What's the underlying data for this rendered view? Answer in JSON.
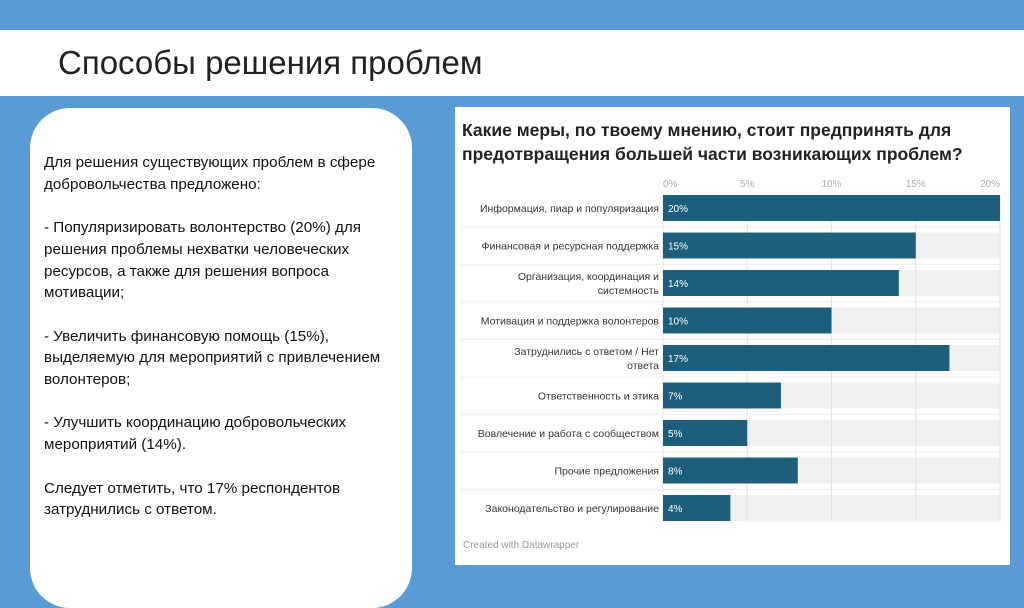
{
  "slide": {
    "title": "Способы решения проблем",
    "body": "Для решения существующих проблем в сфере добровольчества предложено:\n\n- Популяризировать волонтерство (20%) для решения проблемы нехватки человеческих ресурсов, а также для решения вопроса мотивации;\n\n- Увеличить финансовую помощь (15%), выделяемую для мероприятий с привлечением волонтеров;\n\n- Улучшить координацию добровольческих мероприятий (14%).\n\nСледует отметить, что 17% респондентов затруднились с ответом.",
    "colors": {
      "background": "#5b9bd5",
      "bar": "#1d5f7a",
      "track": "#f0f0f0"
    }
  },
  "chart_data": {
    "type": "bar",
    "orientation": "horizontal",
    "title": "Какие меры, по твоему мнению, стоит предпринять для предотвращения большей части возникающих проблем?",
    "credit": "Created with Datawrapper",
    "xlim": [
      0,
      20
    ],
    "ticks": [
      "0%",
      "5%",
      "10%",
      "15%",
      "20%"
    ],
    "tick_values": [
      0,
      5,
      10,
      15,
      20
    ],
    "grid": true,
    "categories": [
      "Информация, пиар и популяризация",
      "Финансовая и ресурсная поддержка",
      "Организация, координация и системность",
      "Мотивация и поддержка волонтеров",
      "Затруднились с ответом / Нет ответа",
      "Ответственность и этика",
      "Вовлечение и работа с сообществом",
      "Прочие предложения",
      "Законодательство и регулирование"
    ],
    "values": [
      20,
      15,
      14,
      10,
      17,
      7,
      5,
      8,
      4
    ],
    "labels": [
      "20%",
      "15%",
      "14%",
      "10%",
      "17%",
      "7%",
      "5%",
      "8%",
      "4%"
    ]
  }
}
